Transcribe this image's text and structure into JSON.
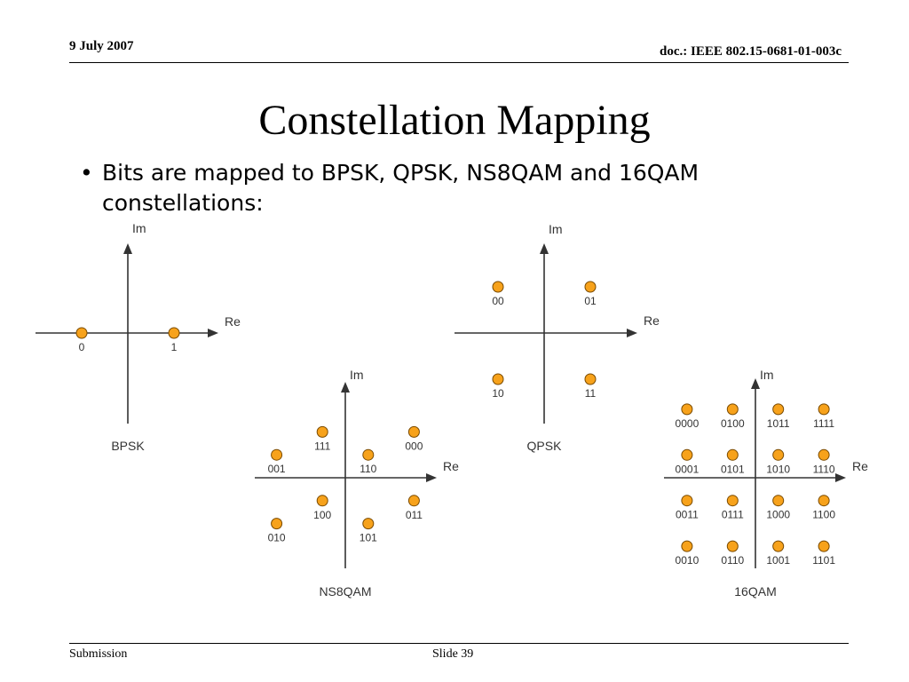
{
  "header": {
    "date": "9 July 2007",
    "doc_id": "doc.: IEEE 802.15-0681-01-003c"
  },
  "title": "Constellation Mapping",
  "bullet": {
    "marker": "•",
    "text": "Bits are mapped to BPSK, QPSK, NS8QAM and 16QAM constellations:"
  },
  "footer": {
    "left": "Submission",
    "center": "Slide 39"
  },
  "colors": {
    "point_fill": "#f7a21b",
    "point_stroke": "#7a4a00",
    "axis": "#333333",
    "text": "#333333"
  },
  "constellations": {
    "bpsk": {
      "name": "BPSK",
      "re_label": "Re",
      "im_label": "Im",
      "points": [
        {
          "label": "0",
          "i": -1,
          "q": 0
        },
        {
          "label": "1",
          "i": 1,
          "q": 0
        }
      ]
    },
    "qpsk": {
      "name": "QPSK",
      "re_label": "Re",
      "im_label": "Im",
      "points": [
        {
          "label": "00",
          "i": -1,
          "q": 1
        },
        {
          "label": "01",
          "i": 1,
          "q": 1
        },
        {
          "label": "10",
          "i": -1,
          "q": -1
        },
        {
          "label": "11",
          "i": 1,
          "q": -1
        }
      ]
    },
    "ns8qam": {
      "name": "NS8QAM",
      "re_label": "Re",
      "im_label": "Im",
      "points": [
        {
          "label": "111",
          "i": -1,
          "q": 2
        },
        {
          "label": "000",
          "i": 3,
          "q": 2
        },
        {
          "label": "001",
          "i": -3,
          "q": 1
        },
        {
          "label": "110",
          "i": 1,
          "q": 1
        },
        {
          "label": "100",
          "i": -1,
          "q": -1
        },
        {
          "label": "011",
          "i": 3,
          "q": -1
        },
        {
          "label": "010",
          "i": -3,
          "q": -2
        },
        {
          "label": "101",
          "i": 1,
          "q": -2
        }
      ]
    },
    "qam16": {
      "name": "16QAM",
      "re_label": "Re",
      "im_label": "Im",
      "points": [
        {
          "label": "0000",
          "i": -3,
          "q": 3
        },
        {
          "label": "0100",
          "i": -1,
          "q": 3
        },
        {
          "label": "1011",
          "i": 1,
          "q": 3
        },
        {
          "label": "1111",
          "i": 3,
          "q": 3
        },
        {
          "label": "0001",
          "i": -3,
          "q": 1
        },
        {
          "label": "0101",
          "i": -1,
          "q": 1
        },
        {
          "label": "1010",
          "i": 1,
          "q": 1
        },
        {
          "label": "1110",
          "i": 3,
          "q": 1
        },
        {
          "label": "0011",
          "i": -3,
          "q": -1
        },
        {
          "label": "0111",
          "i": -1,
          "q": -1
        },
        {
          "label": "1000",
          "i": 1,
          "q": -1
        },
        {
          "label": "1100",
          "i": 3,
          "q": -1
        },
        {
          "label": "0010",
          "i": -3,
          "q": -3
        },
        {
          "label": "0110",
          "i": -1,
          "q": -3
        },
        {
          "label": "1001",
          "i": 1,
          "q": -3
        },
        {
          "label": "1101",
          "i": 3,
          "q": -3
        }
      ]
    }
  }
}
